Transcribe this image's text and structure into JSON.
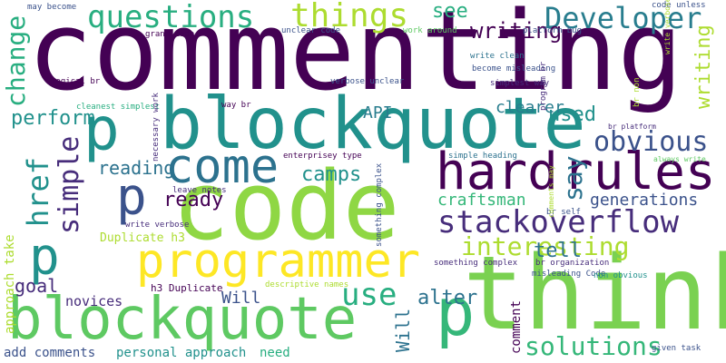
{
  "palette": {
    "dark_purple": "#440154",
    "indigo": "#472d7b",
    "blue": "#3b528b",
    "steel": "#2c728e",
    "teal": "#21918c",
    "green_teal": "#28ae80",
    "green": "#5ec962",
    "lime": "#addc30",
    "yellow": "#fde725"
  },
  "words": [
    "commenting",
    "code",
    "think",
    "blockquote",
    "blockquote",
    "programmer",
    "hard",
    "rules",
    "p",
    "p",
    "p",
    "p",
    "say",
    "stackoverflow",
    "come",
    "questions",
    "things",
    "Developer",
    "interesting",
    "solutions",
    "obvious",
    "use",
    "simple",
    "href",
    "change",
    "writing",
    "see",
    "used",
    "perform",
    "reading",
    "ready",
    "camps",
    "tell",
    "goal",
    "alter",
    "crutch",
    "API",
    "Will",
    "craftsman",
    "generations",
    "clearer",
    "novices",
    "need",
    "add comments",
    "personal approach",
    "approach take",
    "Duplicate h3",
    "h3 Duplicate",
    "comment",
    "may become",
    "code unless",
    "grand code",
    "unclear code",
    "work around",
    "platform bug",
    "write clean",
    "become misleading",
    "simplest way",
    "program br",
    "logical br",
    "verbose unclear",
    "cleanest simplest",
    "br non",
    "way br",
    "br platform",
    "enterprisey type",
    "simple heading",
    "always write",
    "necessary work",
    "comments may",
    "leave notes",
    "writing something",
    "write verbose",
    "br self",
    "something complex",
    "br organization",
    "misleading Code",
    "descriptive names",
    "non obvious",
    "given task",
    "self documenting",
    "Commenting tends",
    "code library"
  ]
}
